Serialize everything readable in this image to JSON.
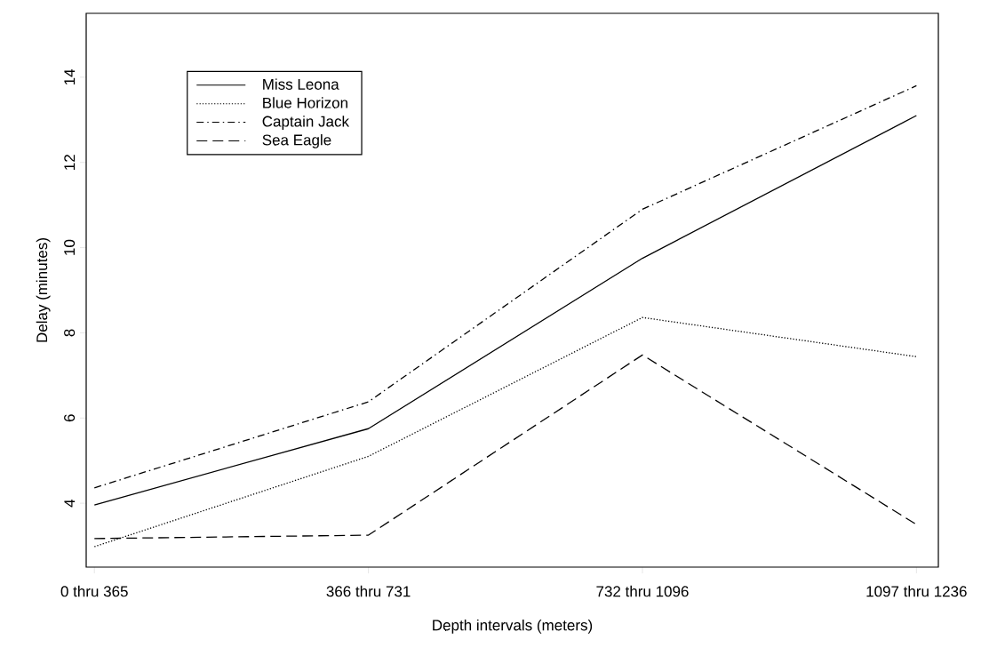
{
  "chart_data": {
    "type": "line",
    "xlabel": "Depth intervals (meters)",
    "ylabel": "Delay (minutes)",
    "categories": [
      "0 thru  365",
      "366 thru  731",
      "732 thru 1096",
      "1097 thru 1236"
    ],
    "series": [
      {
        "name": "Miss Leona",
        "color": "#000000",
        "line_style": "solid",
        "values": [
          3.96,
          5.75,
          9.75,
          13.1
        ]
      },
      {
        "name": "Blue Horizon",
        "color": "#000000",
        "line_style": "dotted",
        "values": [
          2.98,
          5.1,
          8.36,
          7.44
        ]
      },
      {
        "name": "Captain Jack",
        "color": "#000000",
        "line_style": "dashdot",
        "values": [
          4.36,
          6.38,
          10.9,
          13.8
        ]
      },
      {
        "name": "Sea Eagle",
        "color": "#000000",
        "line_style": "dashed",
        "values": [
          3.17,
          3.25,
          7.48,
          3.5
        ]
      }
    ],
    "ylim": [
      2.5,
      15.5
    ],
    "yticks": [
      4,
      6,
      8,
      10,
      12,
      14
    ],
    "grid": false,
    "legend": "top left",
    "marker": "none"
  }
}
